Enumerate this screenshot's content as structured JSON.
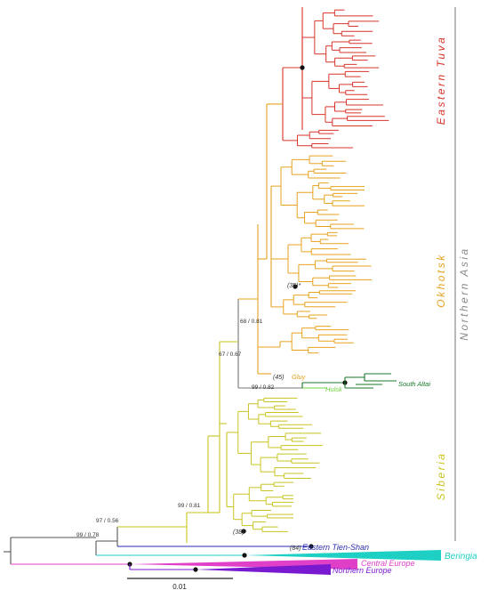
{
  "clades": {
    "eastern_tuva": "Eastern Tuva",
    "okhotsk": "Okhotsk",
    "siberia": "Siberia",
    "northern_asia": "Northern Asia",
    "south_altai": "South Altai",
    "hulsk": "Hulsk",
    "gluy": "Gluy",
    "eastern_tien_shan": "Eastern Tien-Shan",
    "beringia": "Beringia",
    "central_europe": "Central Europe",
    "northern_europe": "Northern Europe"
  },
  "counts": {
    "gluy": "(45)",
    "okhotsk_inner": "(35)*",
    "siberia_inner": "(38)*",
    "tien_shan": "(84)"
  },
  "support": {
    "root": "99 / 0.78",
    "node_97": "97 / 0.56",
    "node_99_siberia": "99 / 0.81",
    "node_67": "67 / 0.67",
    "node_68": "68 / 0.81",
    "node_99_altai": "99 / 0.82"
  },
  "scale": {
    "label": "0.01"
  },
  "colors": {
    "eastern_tuva": "#d9342b",
    "okhotsk": "#e8a21f",
    "siberia": "#c8c420",
    "south_altai": "#1a7a2a",
    "hulsk": "#6dd13e",
    "tien_shan": "#2a2ab0",
    "beringia": "#1ecfc4",
    "central_europe": "#e040c8",
    "northern_europe": "#7a1ad0",
    "backbone": "#555555",
    "northern_asia_bar": "#888888"
  }
}
